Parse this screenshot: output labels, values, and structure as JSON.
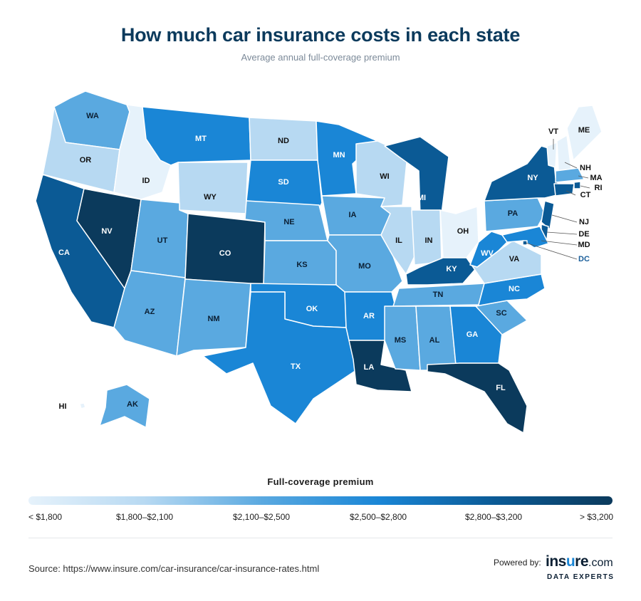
{
  "title": "How much car insurance costs in each state",
  "subtitle": "Average annual full-coverage premium",
  "legend": {
    "title": "Full-coverage premium",
    "gradient": [
      "#e6f2fb",
      "#b7d9f2",
      "#5aa9e0",
      "#1a86d6",
      "#0b5a95",
      "#0b3a5c"
    ],
    "labels": [
      "< $1,800",
      "$1,800–$2,100",
      "$2,100–$2,500",
      "$2,500–$2,800",
      "$2,800–$3,200",
      "> $3,200"
    ]
  },
  "tier_colors": [
    "#e6f2fb",
    "#b7d9f2",
    "#5aa9e0",
    "#1a86d6",
    "#0b5a95",
    "#0b3a5c"
  ],
  "states": [
    {
      "abbr": "WA",
      "tier": 2
    },
    {
      "abbr": "OR",
      "tier": 1
    },
    {
      "abbr": "CA",
      "tier": 4
    },
    {
      "abbr": "NV",
      "tier": 5
    },
    {
      "abbr": "ID",
      "tier": 0
    },
    {
      "abbr": "MT",
      "tier": 3
    },
    {
      "abbr": "WY",
      "tier": 1
    },
    {
      "abbr": "UT",
      "tier": 2
    },
    {
      "abbr": "AZ",
      "tier": 2
    },
    {
      "abbr": "CO",
      "tier": 5
    },
    {
      "abbr": "NM",
      "tier": 2
    },
    {
      "abbr": "ND",
      "tier": 1
    },
    {
      "abbr": "SD",
      "tier": 3
    },
    {
      "abbr": "NE",
      "tier": 2
    },
    {
      "abbr": "KS",
      "tier": 2
    },
    {
      "abbr": "OK",
      "tier": 3
    },
    {
      "abbr": "TX",
      "tier": 3
    },
    {
      "abbr": "MN",
      "tier": 3
    },
    {
      "abbr": "IA",
      "tier": 2
    },
    {
      "abbr": "MO",
      "tier": 2
    },
    {
      "abbr": "AR",
      "tier": 3
    },
    {
      "abbr": "LA",
      "tier": 5
    },
    {
      "abbr": "WI",
      "tier": 1
    },
    {
      "abbr": "IL",
      "tier": 1
    },
    {
      "abbr": "MI",
      "tier": 4
    },
    {
      "abbr": "IN",
      "tier": 1
    },
    {
      "abbr": "OH",
      "tier": 0
    },
    {
      "abbr": "KY",
      "tier": 4
    },
    {
      "abbr": "TN",
      "tier": 2
    },
    {
      "abbr": "MS",
      "tier": 2
    },
    {
      "abbr": "AL",
      "tier": 2
    },
    {
      "abbr": "GA",
      "tier": 3
    },
    {
      "abbr": "FL",
      "tier": 5
    },
    {
      "abbr": "SC",
      "tier": 2
    },
    {
      "abbr": "NC",
      "tier": 3
    },
    {
      "abbr": "VA",
      "tier": 1
    },
    {
      "abbr": "WV",
      "tier": 3
    },
    {
      "abbr": "PA",
      "tier": 2
    },
    {
      "abbr": "NY",
      "tier": 4
    },
    {
      "abbr": "VT",
      "tier": 0
    },
    {
      "abbr": "NH",
      "tier": 0
    },
    {
      "abbr": "ME",
      "tier": 0
    },
    {
      "abbr": "MA",
      "tier": 2
    },
    {
      "abbr": "RI",
      "tier": 4
    },
    {
      "abbr": "CT",
      "tier": 4
    },
    {
      "abbr": "NJ",
      "tier": 4
    },
    {
      "abbr": "DE",
      "tier": 4
    },
    {
      "abbr": "MD",
      "tier": 3
    },
    {
      "abbr": "DC",
      "tier": 4
    },
    {
      "abbr": "AK",
      "tier": 2
    },
    {
      "abbr": "HI",
      "tier": 0
    }
  ],
  "source": "Source: https://www.insure.com/car-insurance/car-insurance-rates.html",
  "powered_by": "Powered by:",
  "brand": {
    "pre": "ins",
    "mark": "u",
    "post": "re",
    "suffix": ".com",
    "tagline": "DATA EXPERTS"
  }
}
